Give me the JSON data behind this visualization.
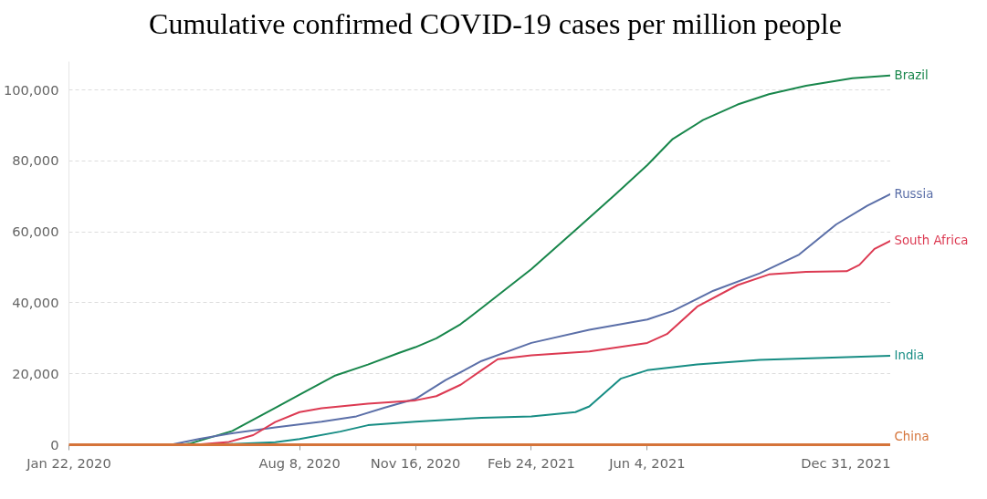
{
  "chart_data": {
    "type": "line",
    "title": "Cumulative confirmed COVID-19 cases per million people",
    "xlim": [
      "2020-01-22",
      "2021-12-31"
    ],
    "xticks": [
      {
        "value": "2020-01-22",
        "label": "Jan 22, 2020"
      },
      {
        "value": "2020-08-08",
        "label": "Aug 8, 2020"
      },
      {
        "value": "2020-11-16",
        "label": "Nov 16, 2020"
      },
      {
        "value": "2021-02-24",
        "label": "Feb 24, 2021"
      },
      {
        "value": "2021-06-04",
        "label": "Jun 4, 2021"
      },
      {
        "value": "2021-12-31",
        "label": "Dec 31, 2021"
      }
    ],
    "ylim": [
      0,
      108000
    ],
    "yticks": [
      0,
      {
        "value": 20000,
        "label": "20,000"
      },
      {
        "value": 40000,
        "label": "40,000"
      },
      {
        "value": 60000,
        "label": "60,000"
      },
      {
        "value": 80000,
        "label": "80,000"
      },
      {
        "value": 100000,
        "label": "100,000"
      }
    ],
    "grid": "y",
    "line_style": "solid",
    "marker": "none",
    "series": [
      {
        "name": "Brazil",
        "color": "#18864b",
        "x": [
          "2020-04-28",
          "2020-05-05",
          "2020-06-11",
          "2020-07-18",
          "2020-08-08",
          "2020-09-07",
          "2020-10-06",
          "2020-11-02",
          "2020-11-16",
          "2020-12-04",
          "2020-12-25",
          "2021-01-12",
          "2021-02-24",
          "2021-04-03",
          "2021-05-08",
          "2021-06-04",
          "2021-06-26",
          "2021-07-22",
          "2021-08-21",
          "2021-09-17",
          "2021-10-19",
          "2021-11-28",
          "2021-12-31"
        ],
        "values": [
          0,
          300,
          3900,
          10400,
          14100,
          19400,
          22600,
          25900,
          27500,
          30000,
          34000,
          38500,
          49500,
          60500,
          70700,
          78800,
          86200,
          91500,
          95900,
          98800,
          101200,
          103300,
          104100
        ]
      },
      {
        "name": "Russia",
        "color": "#5b6fa8",
        "x": [
          "2020-04-19",
          "2020-05-13",
          "2020-06-08",
          "2020-07-18",
          "2020-08-27",
          "2020-09-26",
          "2020-10-20",
          "2020-11-16",
          "2020-12-12",
          "2021-01-12",
          "2021-02-24",
          "2021-04-15",
          "2021-06-04",
          "2021-06-26",
          "2021-07-31",
          "2021-09-09",
          "2021-10-13",
          "2021-11-14",
          "2021-12-11",
          "2021-12-31"
        ],
        "values": [
          0,
          1600,
          3100,
          4900,
          6500,
          8000,
          10400,
          12900,
          18200,
          23600,
          28700,
          32400,
          35300,
          37700,
          43400,
          48300,
          53600,
          62100,
          67400,
          70700
        ]
      },
      {
        "name": "South Africa",
        "color": "#dc3a52",
        "x": [
          "2020-05-10",
          "2020-06-08",
          "2020-06-29",
          "2020-07-18",
          "2020-08-08",
          "2020-08-27",
          "2020-10-06",
          "2020-11-16",
          "2020-12-04",
          "2020-12-25",
          "2021-01-12",
          "2021-01-26",
          "2021-02-24",
          "2021-04-15",
          "2021-06-04",
          "2021-06-21",
          "2021-07-17",
          "2021-08-21",
          "2021-09-17",
          "2021-10-19",
          "2021-11-23",
          "2021-12-04",
          "2021-12-17",
          "2021-12-31"
        ],
        "values": [
          0,
          800,
          2700,
          6400,
          9200,
          10300,
          11600,
          12500,
          13700,
          16900,
          21000,
          24100,
          25200,
          26300,
          28700,
          31200,
          38900,
          45000,
          48000,
          48700,
          48900,
          50700,
          55200,
          57500
        ]
      },
      {
        "name": "India",
        "color": "#178d84",
        "x": [
          "2020-05-26",
          "2020-07-18",
          "2020-08-08",
          "2020-09-12",
          "2020-10-06",
          "2020-11-16",
          "2021-01-12",
          "2021-02-24",
          "2021-04-03",
          "2021-04-15",
          "2021-05-12",
          "2021-06-04",
          "2021-07-17",
          "2021-09-09",
          "2021-12-31"
        ],
        "values": [
          0,
          700,
          1600,
          3700,
          5500,
          6500,
          7600,
          8000,
          9200,
          10800,
          18600,
          21000,
          22600,
          23900,
          25100
        ]
      },
      {
        "name": "China",
        "color": "#d5743a",
        "x": [
          "2020-01-22",
          "2021-12-31"
        ],
        "values": [
          0,
          0
        ]
      }
    ]
  }
}
